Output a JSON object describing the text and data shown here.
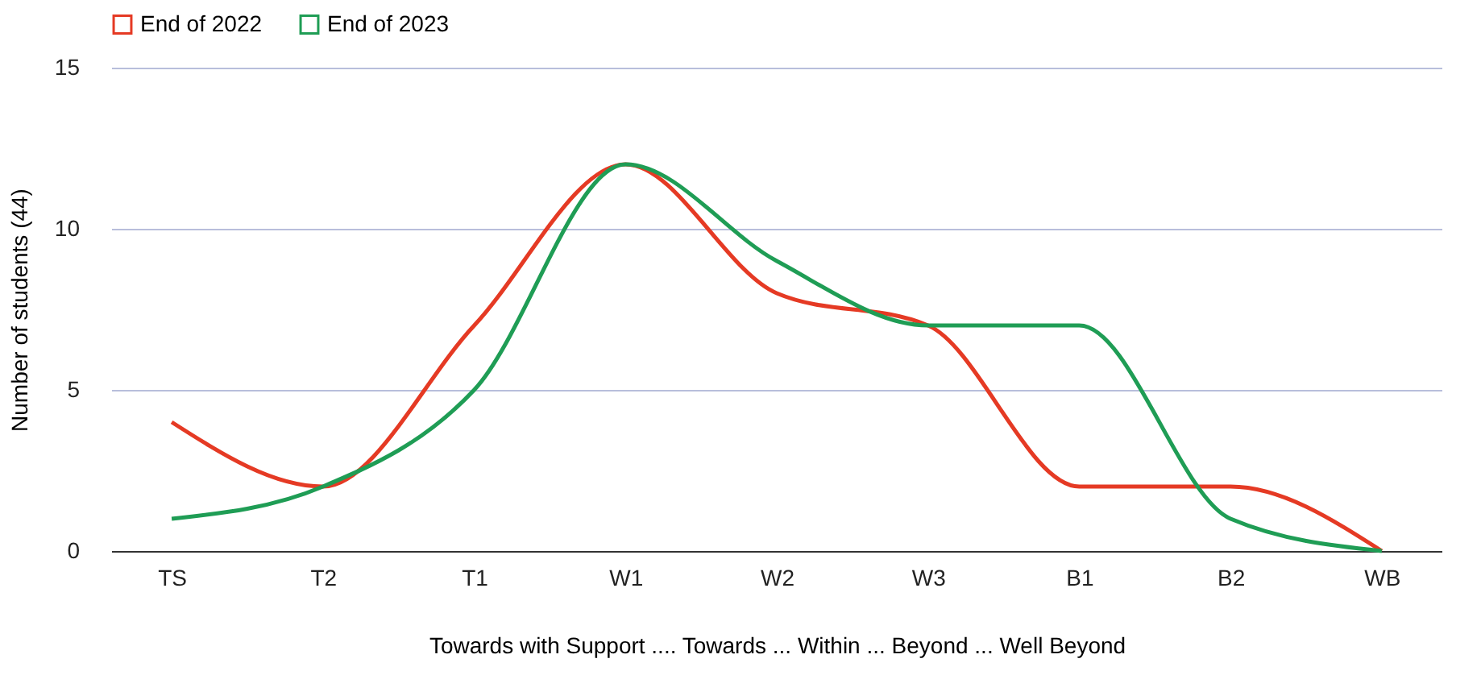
{
  "chart_data": {
    "type": "line",
    "xlabel": "Towards with Support .... Towards ... Within ... Beyond ... Well Beyond",
    "ylabel": "Number of students (44)",
    "categories": [
      "TS",
      "T2",
      "T1",
      "W1",
      "W2",
      "W3",
      "B1",
      "B2",
      "WB"
    ],
    "series": [
      {
        "name": "End of 2022",
        "color": "#e53a24",
        "values": [
          4,
          2,
          7,
          12,
          8,
          7,
          2,
          2,
          0
        ]
      },
      {
        "name": "End of 2023",
        "color": "#1f9d55",
        "values": [
          1,
          2,
          5,
          12,
          9,
          7,
          7,
          1,
          0
        ]
      }
    ],
    "ylim": [
      0,
      15
    ],
    "yticks": [
      0,
      5,
      10,
      15
    ],
    "grid": "y",
    "legend": "top",
    "marker": "none",
    "line_style": "solid"
  }
}
